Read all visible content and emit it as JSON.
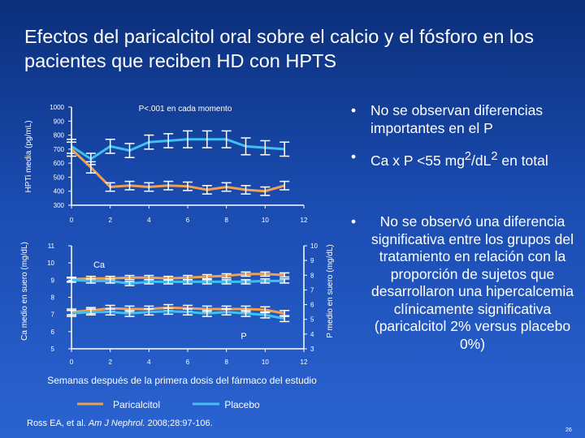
{
  "title": "Efectos del paricalcitol oral sobre el calcio y el fósforo en los pacientes que reciben HD con HPTS",
  "bullets": [
    {
      "text": "No se observan diferencias importantes en el P"
    },
    {
      "pre": "Ca x P <55 mg",
      "sup1": "2",
      "mid": "/dL",
      "sup2": "2",
      "post": " en total"
    },
    {
      "text": "No se observó una diferencia significativa entre los grupos del tratamiento en relación con la proporción de sujetos que desarrollaron una hipercalcemia clínicamente significativa (paricalcitol 2% versus placebo 0%)"
    }
  ],
  "footnote": {
    "pre": "Ross EA, et al. ",
    "journal": "Am J Nephrol.",
    "post": " 2008;28:97-106."
  },
  "page_number": "26",
  "colors": {
    "paricalcitol": "#f0a050",
    "placebo": "#40c0f0",
    "errorbar": "#ffffff",
    "background_top": "#0b2f7a",
    "background_bottom": "#2a63d1"
  },
  "legend": {
    "paricalcitol": "Paricalcitol",
    "placebo": "Placebo"
  },
  "shared_xlabel": "Semanas después de la primera dosis del fármaco del estudio",
  "chart_data": [
    {
      "type": "line",
      "ylabel": "HPTi media (pg/mL)",
      "annotation": "P<.001 en cada momento",
      "x": [
        0,
        1,
        2,
        3,
        4,
        5,
        6,
        7,
        8,
        9,
        10,
        11,
        12
      ],
      "xticks": [
        0,
        2,
        4,
        6,
        8,
        10,
        12
      ],
      "ylim": [
        300,
        1000
      ],
      "yticks": [
        300,
        400,
        500,
        600,
        700,
        800,
        900,
        1000
      ],
      "series": [
        {
          "name": "Paricalcitol",
          "values": [
            700,
            570,
            430,
            440,
            430,
            440,
            435,
            410,
            430,
            410,
            400,
            440,
            null
          ],
          "err": [
            50,
            40,
            30,
            30,
            30,
            30,
            30,
            30,
            30,
            30,
            30,
            30,
            null
          ]
        },
        {
          "name": "Placebo",
          "values": [
            720,
            630,
            720,
            690,
            750,
            760,
            770,
            770,
            770,
            720,
            710,
            700,
            null
          ],
          "err": [
            50,
            40,
            50,
            50,
            50,
            50,
            60,
            60,
            60,
            60,
            50,
            50,
            null
          ]
        }
      ]
    },
    {
      "type": "line",
      "ylabel": "Ca medio en suero (mg/dL)",
      "y2label": "P medio en suero (mg/dL)",
      "label_ca": "Ca",
      "label_p": "P",
      "x": [
        0,
        1,
        2,
        3,
        4,
        5,
        6,
        7,
        8,
        9,
        10,
        11,
        12
      ],
      "xticks": [
        0,
        2,
        4,
        6,
        8,
        10,
        12
      ],
      "ylim": [
        5,
        11
      ],
      "yticks": [
        5,
        6,
        7,
        8,
        9,
        10,
        11
      ],
      "y2lim": [
        3,
        10
      ],
      "y2ticks": [
        3,
        4,
        5,
        6,
        7,
        8,
        9,
        10
      ],
      "series": [
        {
          "name": "Ca Paricalcitol",
          "axis": "left",
          "values": [
            9.05,
            9.1,
            9.1,
            9.15,
            9.15,
            9.1,
            9.15,
            9.2,
            9.25,
            9.35,
            9.35,
            9.3,
            null
          ],
          "err": [
            0.12,
            0.12,
            0.12,
            0.12,
            0.12,
            0.12,
            0.12,
            0.12,
            0.12,
            0.12,
            0.12,
            0.12,
            null
          ]
        },
        {
          "name": "Ca Placebo",
          "axis": "left",
          "values": [
            9.0,
            8.95,
            8.95,
            8.8,
            8.9,
            8.9,
            8.9,
            8.9,
            8.9,
            8.9,
            8.95,
            8.95,
            null
          ],
          "err": [
            0.12,
            0.12,
            0.12,
            0.12,
            0.12,
            0.12,
            0.12,
            0.12,
            0.12,
            0.12,
            0.12,
            0.12,
            null
          ]
        },
        {
          "name": "P Paricalcitol",
          "axis": "right",
          "values": [
            5.5,
            5.6,
            5.75,
            5.7,
            5.7,
            5.8,
            5.75,
            5.7,
            5.7,
            5.7,
            5.65,
            5.4,
            null
          ],
          "err": [
            0.2,
            0.2,
            0.2,
            0.2,
            0.2,
            0.2,
            0.2,
            0.2,
            0.2,
            0.2,
            0.2,
            0.2,
            null
          ]
        },
        {
          "name": "P Placebo",
          "axis": "right",
          "values": [
            5.4,
            5.5,
            5.5,
            5.4,
            5.5,
            5.55,
            5.5,
            5.4,
            5.5,
            5.4,
            5.3,
            5.05,
            null
          ],
          "err": [
            0.2,
            0.2,
            0.2,
            0.2,
            0.2,
            0.2,
            0.2,
            0.2,
            0.2,
            0.2,
            0.2,
            0.2,
            null
          ]
        }
      ]
    }
  ]
}
